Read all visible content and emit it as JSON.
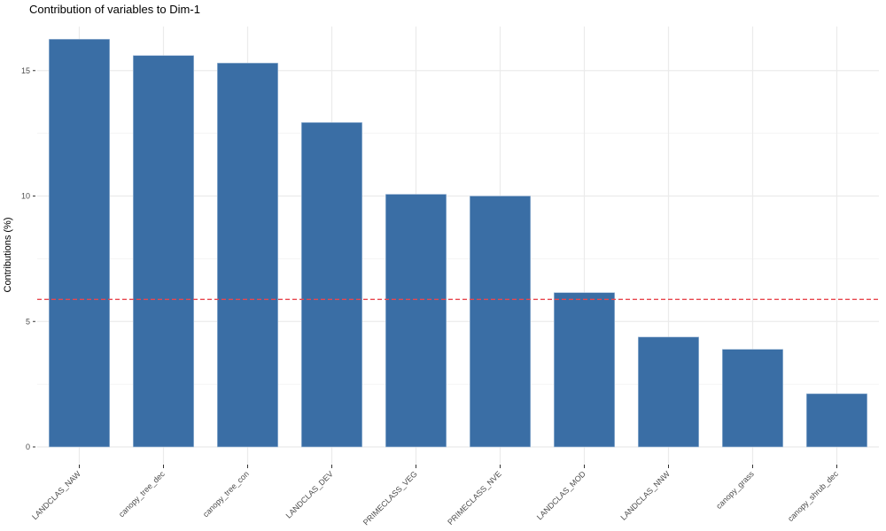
{
  "chart_data": {
    "type": "bar",
    "title": "Contribution of variables to Dim-1",
    "xlabel": "",
    "ylabel": "Contributions (%)",
    "categories": [
      "LANDCLAS_NAW",
      "canopy_tree_dec",
      "canopy_tree_con",
      "LANDCLAS_DEV",
      "PRIMECLASS_VEG",
      "PRIMECLASS_NVE",
      "LANDCLAS_MOD",
      "LANDCLAS_NNW",
      "canopy_grass",
      "canopy_shrub_dec"
    ],
    "values": [
      16.25,
      15.6,
      15.3,
      12.93,
      10.07,
      10.0,
      6.15,
      4.38,
      3.89,
      2.12
    ],
    "ylim": [
      0,
      16.8
    ],
    "yticks": [
      0,
      5,
      10,
      15
    ],
    "reference_line": {
      "y": 5.88,
      "style": "dashed",
      "color": "#e8474f"
    },
    "bar_color": "#3a6ea5",
    "grid": true,
    "legend": null
  }
}
